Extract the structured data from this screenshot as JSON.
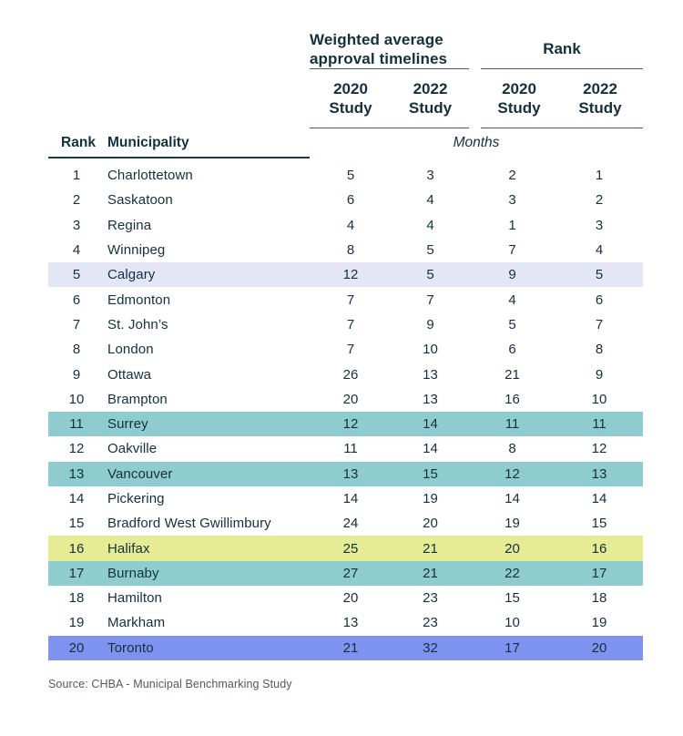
{
  "header": {
    "group1_title": "Weighted average approval timelines",
    "group2_title": "Rank",
    "col_headers": [
      "2020 Study",
      "2022 Study",
      "2020 Study",
      "2022 Study"
    ],
    "rank_header": "Rank",
    "municipality_header": "Municipality",
    "unit_label": "Months"
  },
  "source": "Source: CHBA - Municipal Benchmarking Study",
  "colors": {
    "text": "#13303d",
    "line": "#44606c",
    "line-strong": "#1c3945",
    "source-text": "#4d5a63",
    "hl-lavender": "#e4e5f5",
    "hl-teal": "#8fccd0",
    "hl-yellow": "#e6ec94",
    "hl-blue": "#7e93f0"
  },
  "chart_data": {
    "type": "table",
    "title": "Weighted average approval timelines and Rank, 2020 vs 2022 Study",
    "unit": "Months",
    "column_groups": [
      "Weighted average approval timelines",
      "Rank"
    ],
    "columns": [
      "Rank",
      "Municipality",
      "Timeline 2020 Study (months)",
      "Timeline 2022 Study (months)",
      "Rank 2020 Study",
      "Rank 2022 Study"
    ],
    "rows": [
      {
        "rank": 1,
        "name": "Charlottetown",
        "wat2020": 5,
        "wat2022": 3,
        "rank2020": 2,
        "rank2022": 1,
        "highlight": "none"
      },
      {
        "rank": 2,
        "name": "Saskatoon",
        "wat2020": 6,
        "wat2022": 4,
        "rank2020": 3,
        "rank2022": 2,
        "highlight": "none"
      },
      {
        "rank": 3,
        "name": "Regina",
        "wat2020": 4,
        "wat2022": 4,
        "rank2020": 1,
        "rank2022": 3,
        "highlight": "none"
      },
      {
        "rank": 4,
        "name": "Winnipeg",
        "wat2020": 8,
        "wat2022": 5,
        "rank2020": 7,
        "rank2022": 4,
        "highlight": "none"
      },
      {
        "rank": 5,
        "name": "Calgary",
        "wat2020": 12,
        "wat2022": 5,
        "rank2020": 9,
        "rank2022": 5,
        "highlight": "lavender"
      },
      {
        "rank": 6,
        "name": "Edmonton",
        "wat2020": 7,
        "wat2022": 7,
        "rank2020": 4,
        "rank2022": 6,
        "highlight": "none"
      },
      {
        "rank": 7,
        "name": "St. John’s",
        "wat2020": 7,
        "wat2022": 9,
        "rank2020": 5,
        "rank2022": 7,
        "highlight": "none"
      },
      {
        "rank": 8,
        "name": "London",
        "wat2020": 7,
        "wat2022": 10,
        "rank2020": 6,
        "rank2022": 8,
        "highlight": "none"
      },
      {
        "rank": 9,
        "name": "Ottawa",
        "wat2020": 26,
        "wat2022": 13,
        "rank2020": 21,
        "rank2022": 9,
        "highlight": "none"
      },
      {
        "rank": 10,
        "name": "Brampton",
        "wat2020": 20,
        "wat2022": 13,
        "rank2020": 16,
        "rank2022": 10,
        "highlight": "none"
      },
      {
        "rank": 11,
        "name": "Surrey",
        "wat2020": 12,
        "wat2022": 14,
        "rank2020": 11,
        "rank2022": 11,
        "highlight": "teal"
      },
      {
        "rank": 12,
        "name": "Oakville",
        "wat2020": 11,
        "wat2022": 14,
        "rank2020": 8,
        "rank2022": 12,
        "highlight": "none"
      },
      {
        "rank": 13,
        "name": "Vancouver",
        "wat2020": 13,
        "wat2022": 15,
        "rank2020": 12,
        "rank2022": 13,
        "highlight": "teal"
      },
      {
        "rank": 14,
        "name": "Pickering",
        "wat2020": 14,
        "wat2022": 19,
        "rank2020": 14,
        "rank2022": 14,
        "highlight": "none"
      },
      {
        "rank": 15,
        "name": "Bradford West Gwillimbury",
        "wat2020": 24,
        "wat2022": 20,
        "rank2020": 19,
        "rank2022": 15,
        "highlight": "none"
      },
      {
        "rank": 16,
        "name": "Halifax",
        "wat2020": 25,
        "wat2022": 21,
        "rank2020": 20,
        "rank2022": 16,
        "highlight": "yellow"
      },
      {
        "rank": 17,
        "name": "Burnaby",
        "wat2020": 27,
        "wat2022": 21,
        "rank2020": 22,
        "rank2022": 17,
        "highlight": "teal"
      },
      {
        "rank": 18,
        "name": "Hamilton",
        "wat2020": 20,
        "wat2022": 23,
        "rank2020": 15,
        "rank2022": 18,
        "highlight": "none"
      },
      {
        "rank": 19,
        "name": "Markham",
        "wat2020": 13,
        "wat2022": 23,
        "rank2020": 10,
        "rank2022": 19,
        "highlight": "none"
      },
      {
        "rank": 20,
        "name": "Toronto",
        "wat2020": 21,
        "wat2022": 32,
        "rank2020": 17,
        "rank2022": 20,
        "highlight": "blue"
      }
    ]
  }
}
